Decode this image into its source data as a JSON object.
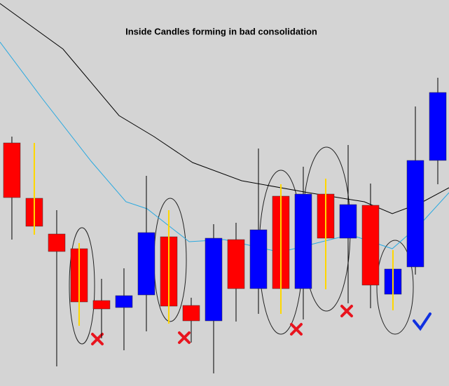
{
  "chart_data": {
    "type": "candlestick",
    "title": "Inside Candles forming in bad consolidation",
    "x": [
      0,
      1,
      2,
      3,
      4,
      5,
      6,
      7,
      8,
      9,
      10,
      11,
      12,
      13,
      14,
      15,
      16,
      17,
      18,
      19
    ],
    "open": [
      347,
      268,
      217,
      196,
      122,
      112,
      130,
      213,
      115,
      93,
      209,
      139,
      271,
      139,
      274,
      211,
      258,
      131,
      170,
      322
    ],
    "high": [
      356,
      347,
      251,
      204,
      153,
      168,
      300,
      251,
      126,
      231,
      233,
      339,
      288,
      313,
      296,
      344,
      289,
      194,
      399,
      440
    ],
    "low": [
      209,
      216,
      28,
      86,
      68,
      51,
      78,
      89,
      62,
      18,
      92,
      103,
      103,
      95,
      138,
      118,
      111,
      108,
      159,
      288
    ],
    "close": [
      269,
      228,
      192,
      120,
      110,
      129,
      219,
      114,
      93,
      211,
      139,
      223,
      139,
      274,
      211,
      259,
      144,
      167,
      322,
      419
    ],
    "up_color": "#0000ff",
    "down_color": "#ff0000",
    "highlighted": [
      1,
      3,
      7,
      12,
      14,
      17
    ],
    "highlight_color": "#ffd700",
    "series": [
      {
        "color": "#000000",
        "x": [
          -0.53,
          2.28,
          4.78,
          6.34,
          8.06,
          10.25,
          13.22,
          15.72,
          16.97,
          18.22,
          19.5
        ],
        "values": [
          546,
          481,
          386,
          356,
          319,
          293,
          276,
          263,
          246,
          261,
          283
        ]
      },
      {
        "color": "#29a9e0",
        "x": [
          -0.53,
          1.34,
          3.53,
          5.09,
          6.03,
          7.91,
          9.47,
          11.97,
          13.84,
          15.09,
          16.97,
          18.22,
          19.5
        ],
        "values": [
          491,
          411,
          321,
          263,
          253,
          206,
          209,
          191,
          206,
          216,
          196,
          231,
          276
        ]
      }
    ],
    "xlim": [
      -0.53,
      19.5
    ],
    "ylim": [
      0,
      551
    ]
  }
}
